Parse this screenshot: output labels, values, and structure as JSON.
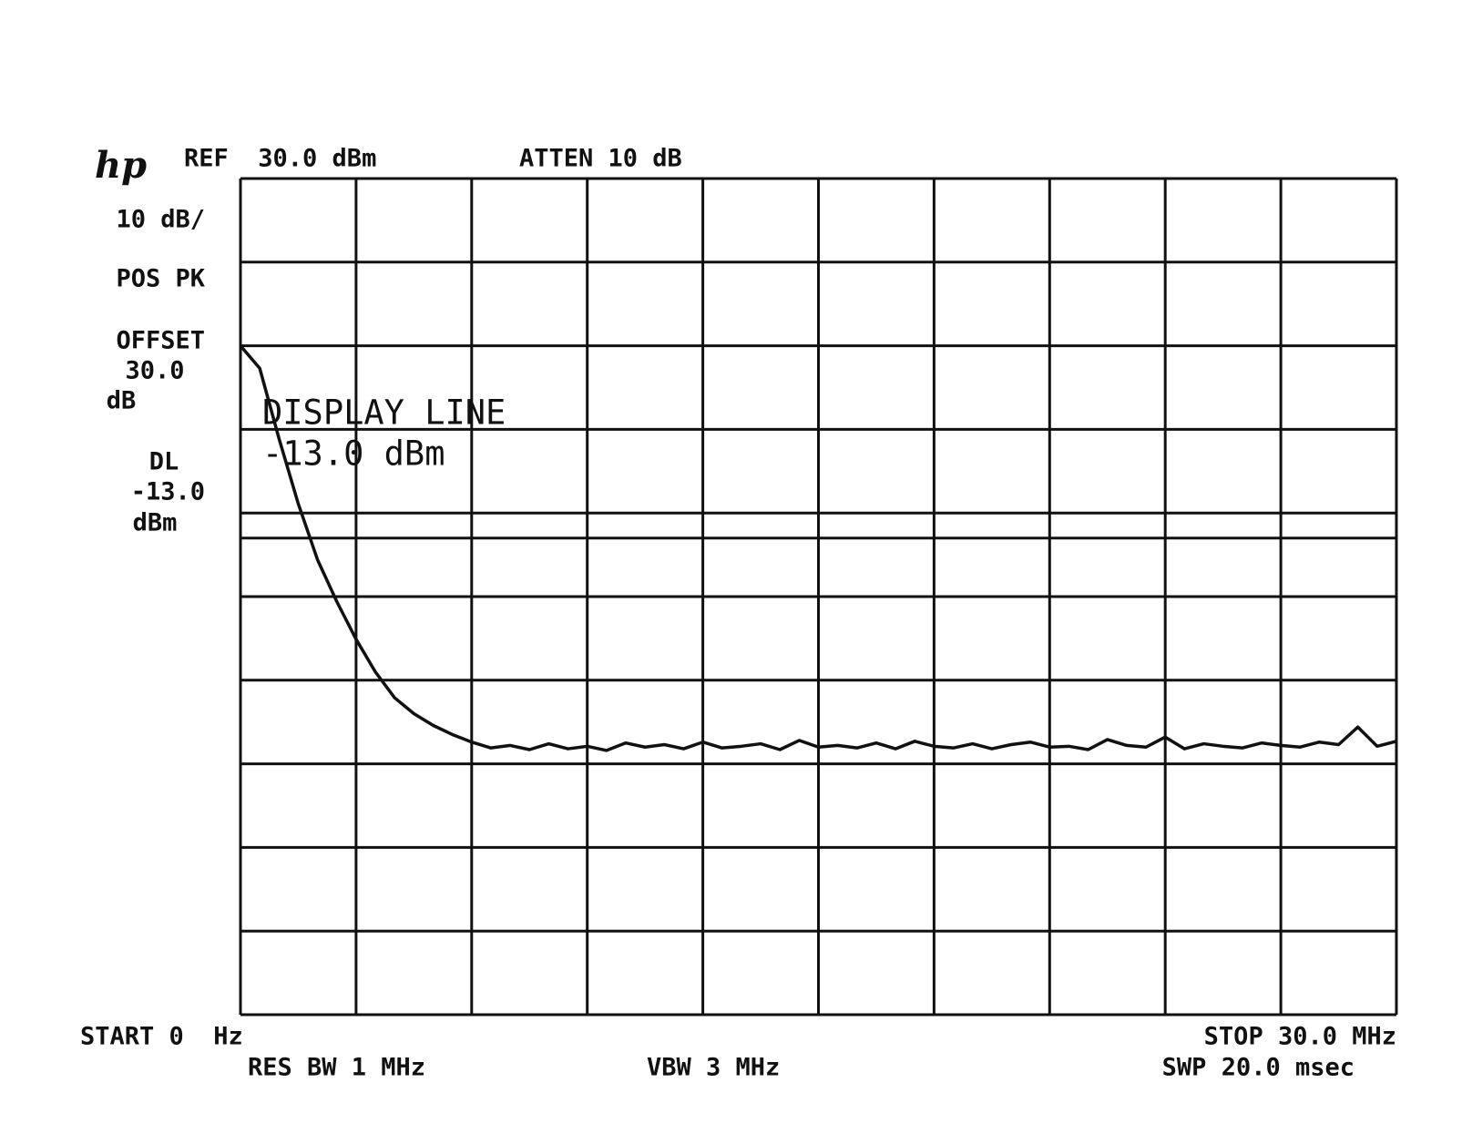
{
  "chart_data": {
    "type": "line",
    "logo": "hp",
    "ref_label": "REF  30.0 dBm",
    "atten_label": "ATTEN 10 dB",
    "side_labels": [
      "10 dB/",
      "POS PK",
      "OFFSET",
      "30.0",
      "dB",
      "DL",
      "-13.0",
      "dBm"
    ],
    "display_line": {
      "value": -13,
      "label": [
        "DISPLAY LINE",
        "-13.0 dBm"
      ]
    },
    "start_label": "START 0  Hz",
    "stop_label": "STOP 30.0 MHz",
    "res_bw_label": "RES BW 1 MHz",
    "vbw_label": "VBW 3 MHz",
    "sweep_label": "SWP 20.0 msec",
    "xlim": [
      0,
      30
    ],
    "ylim": [
      -70,
      30
    ],
    "xticks": [
      0,
      3,
      6,
      9,
      12,
      15,
      18,
      21,
      24,
      27,
      30
    ],
    "yticks": [
      -70,
      -60,
      -50,
      -40,
      -30,
      -20,
      -10,
      0,
      10,
      20,
      30
    ],
    "grid": true,
    "color": "#111111",
    "x": [
      0,
      0.5,
      1,
      1.5,
      2,
      2.5,
      3,
      3.5,
      4,
      4.5,
      5,
      5.5,
      6,
      6.5,
      7,
      7.5,
      8,
      8.5,
      9,
      9.5,
      10,
      10.5,
      11,
      11.5,
      12,
      12.5,
      13,
      13.5,
      14,
      14.5,
      15,
      15.5,
      16,
      16.5,
      17,
      17.5,
      18,
      18.5,
      19,
      19.5,
      20,
      20.5,
      21,
      21.5,
      22,
      22.5,
      23,
      23.5,
      24,
      24.5,
      25,
      25.5,
      26,
      26.5,
      27,
      27.5,
      28,
      28.5,
      29,
      29.5,
      30
    ],
    "values": [
      10,
      7.3,
      -1.1,
      -8.9,
      -15.6,
      -20.6,
      -25.1,
      -29,
      -32.1,
      -34,
      -35.4,
      -36.5,
      -37.4,
      -38.1,
      -37.8,
      -38.3,
      -37.6,
      -38.2,
      -37.9,
      -38.4,
      -37.5,
      -38,
      -37.7,
      -38.2,
      -37.4,
      -38.1,
      -37.9,
      -37.6,
      -38.3,
      -37.2,
      -38,
      -37.8,
      -38.1,
      -37.5,
      -38.2,
      -37.3,
      -37.9,
      -38.1,
      -37.6,
      -38.2,
      -37.7,
      -37.4,
      -38,
      -37.9,
      -38.3,
      -37.1,
      -37.8,
      -38,
      -36.8,
      -38.2,
      -37.6,
      -37.9,
      -38.1,
      -37.5,
      -37.8,
      -38,
      -37.4,
      -37.7,
      -35.6,
      -37.9,
      -37.3
    ]
  }
}
